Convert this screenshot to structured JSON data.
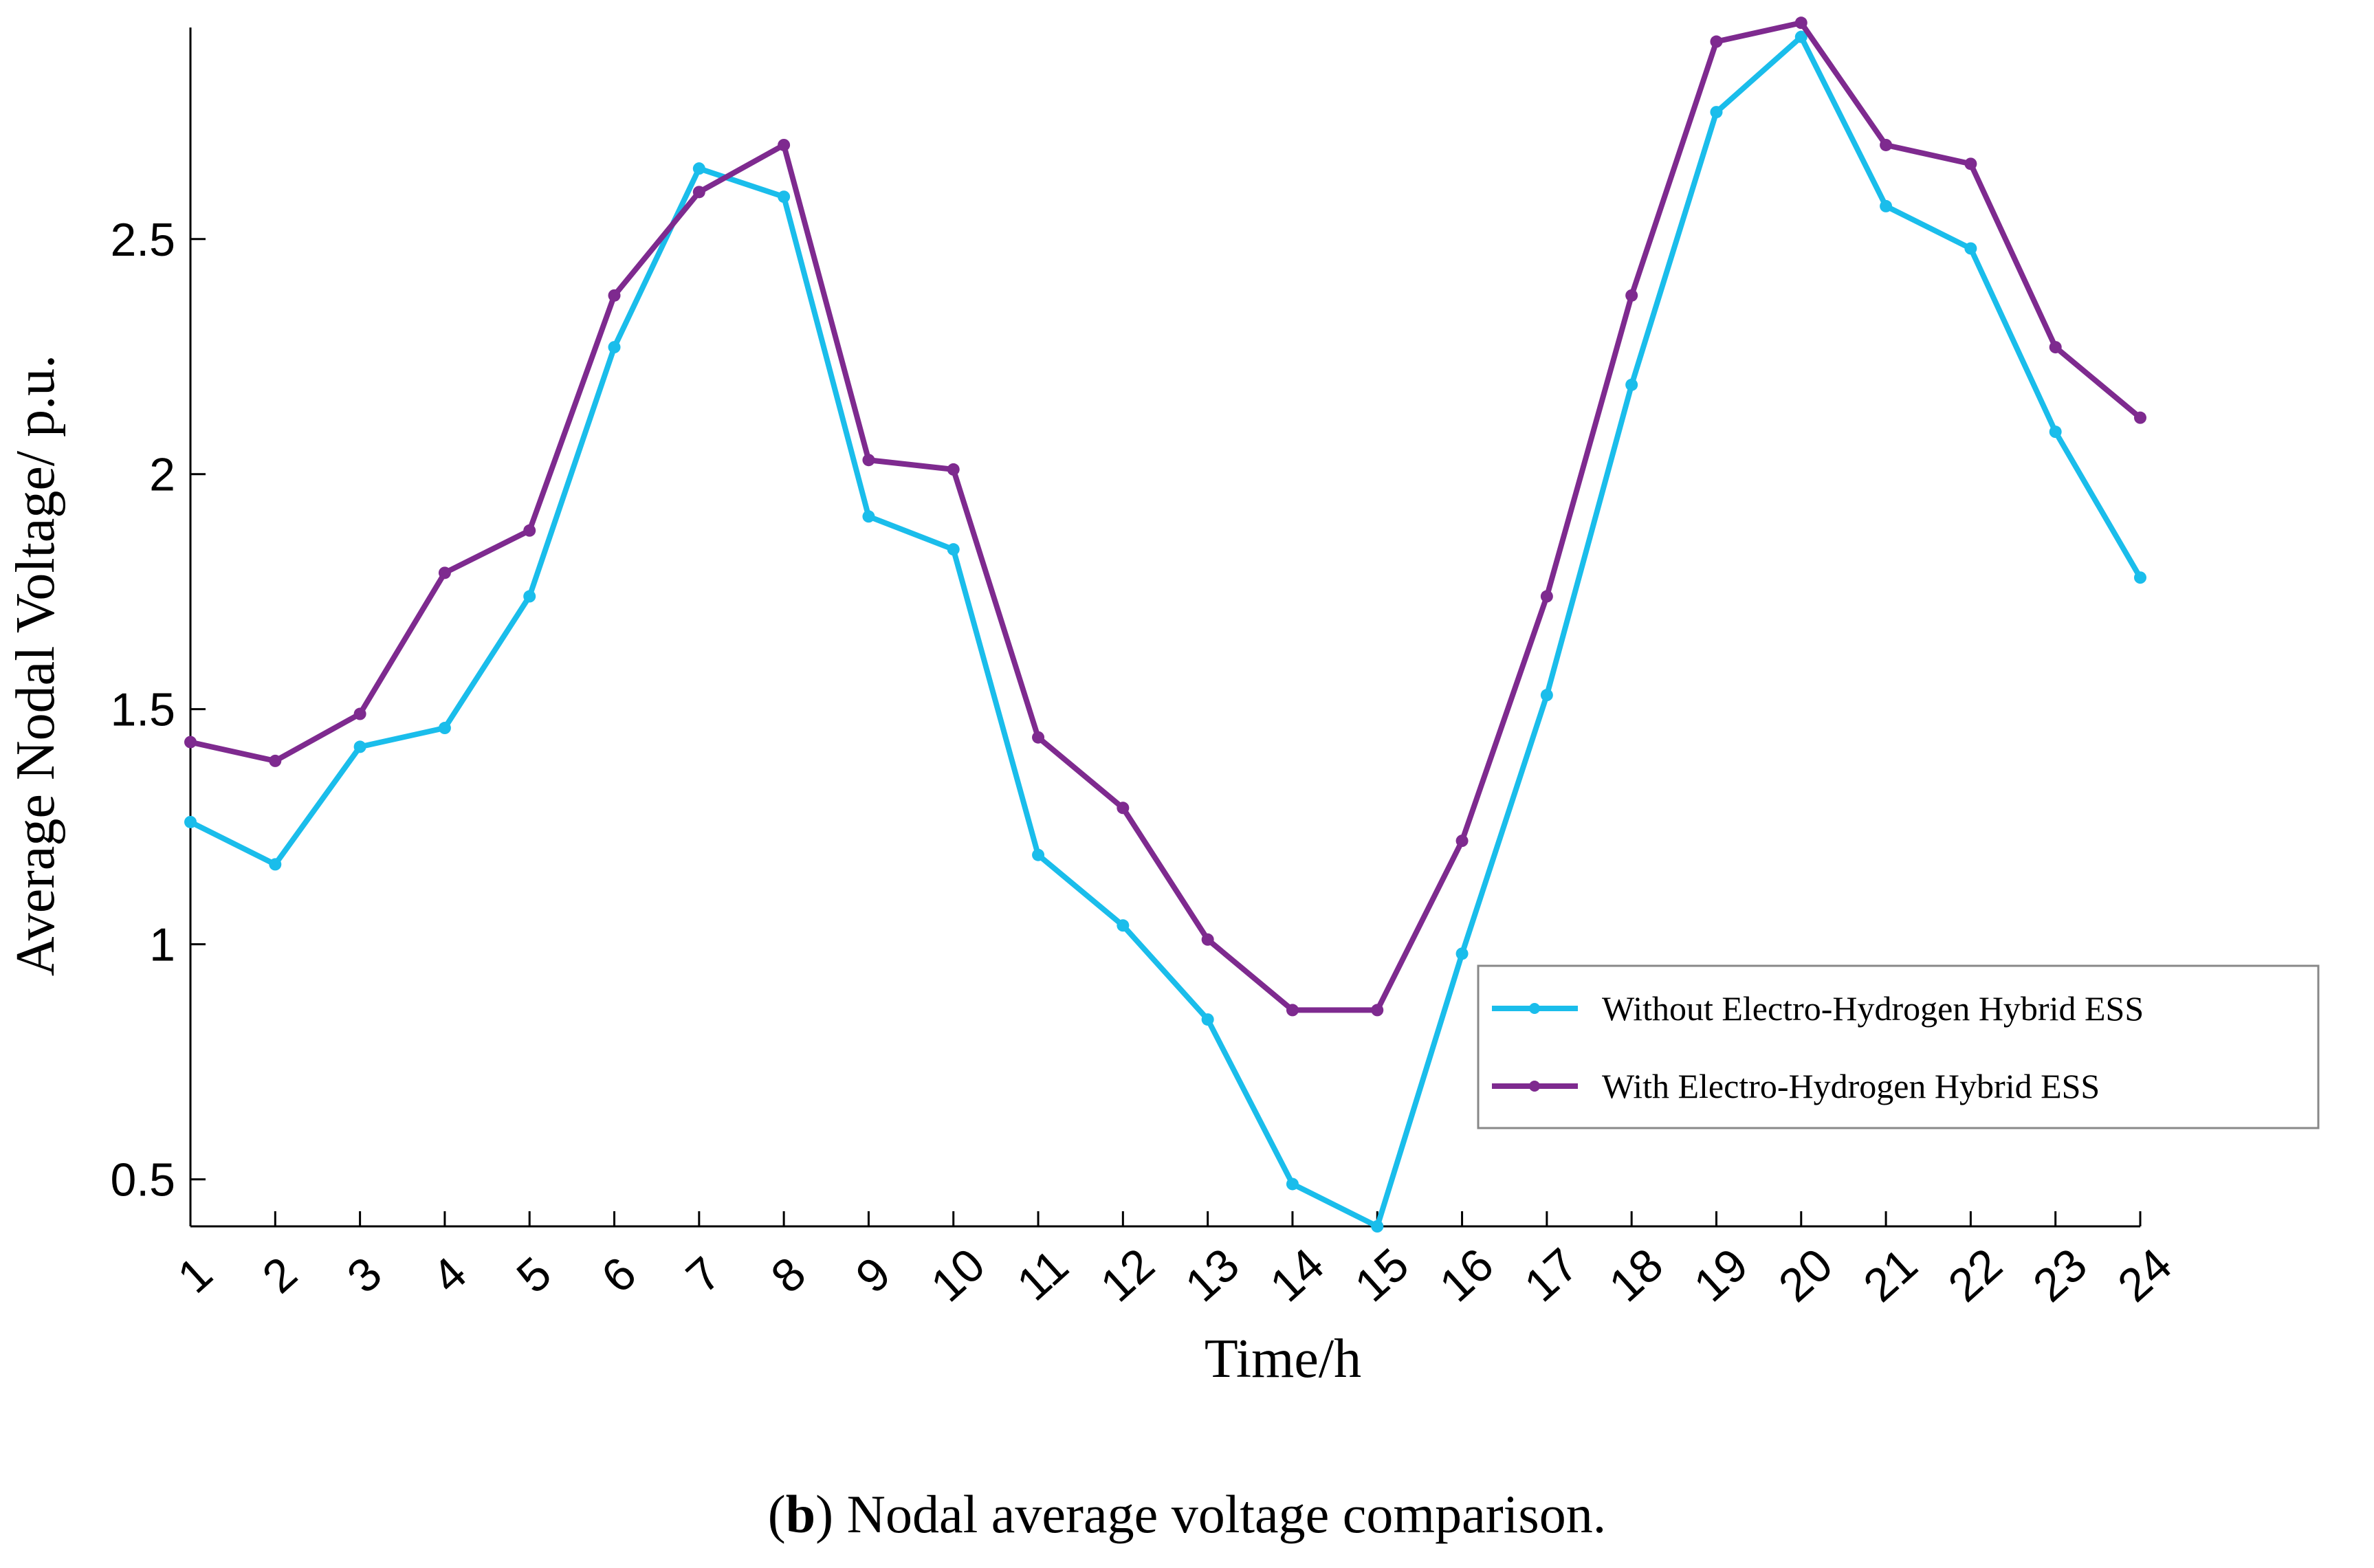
{
  "chart_data": {
    "type": "line",
    "title": "",
    "xlabel": "Time/h",
    "ylabel": "Average Nodal Voltage/ p.u.",
    "categories": [
      "1",
      "2",
      "3",
      "4",
      "5",
      "6",
      "7",
      "8",
      "9",
      "10",
      "11",
      "12",
      "13",
      "14",
      "15",
      "16",
      "17",
      "18",
      "19",
      "20",
      "21",
      "22",
      "23",
      "24"
    ],
    "x": [
      1,
      2,
      3,
      4,
      5,
      6,
      7,
      8,
      9,
      10,
      11,
      12,
      13,
      14,
      15,
      16,
      17,
      18,
      19,
      20,
      21,
      22,
      23,
      24
    ],
    "xlim": [
      1,
      24
    ],
    "ylim": [
      0.4,
      2.95
    ],
    "yticks": [
      0.5,
      1,
      1.5,
      2,
      2.5
    ],
    "ytick_labels": [
      "0.5",
      "1",
      "1.5",
      "2",
      "2.5"
    ],
    "grid": false,
    "legend_position": "bottom-right",
    "series": [
      {
        "name": "Without Electro-Hydrogen Hybrid ESS",
        "color": "#1ABDEB",
        "values": [
          1.26,
          1.17,
          1.42,
          1.46,
          1.74,
          2.27,
          2.65,
          2.59,
          1.91,
          1.84,
          1.19,
          1.04,
          0.84,
          0.49,
          0.4,
          0.98,
          1.53,
          2.19,
          2.77,
          2.93,
          2.57,
          2.48,
          2.09,
          1.78
        ]
      },
      {
        "name": "With Electro-Hydrogen Hybrid ESS",
        "color": "#7E2A8F",
        "values": [
          1.43,
          1.39,
          1.49,
          1.79,
          1.88,
          2.38,
          2.6,
          2.7,
          2.03,
          2.01,
          1.44,
          1.29,
          1.01,
          0.86,
          0.86,
          1.22,
          1.74,
          2.38,
          2.92,
          2.96,
          2.7,
          2.66,
          2.27,
          2.12
        ]
      }
    ]
  },
  "caption": {
    "label": "b",
    "text": "Nodal average voltage comparison."
  }
}
